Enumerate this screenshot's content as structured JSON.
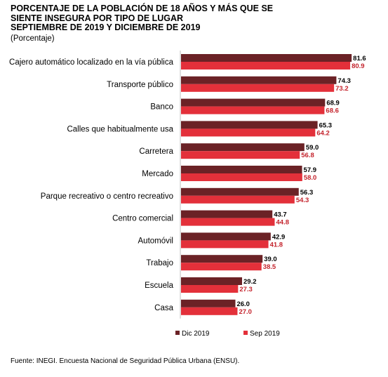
{
  "title_lines": [
    "PORCENTAJE DE LA POBLACIÓN DE 18 AÑOS Y MÁS QUE SE",
    "SIENTE INSEGURA POR TIPO DE LUGAR",
    "SEPTIEMBRE DE 2019 Y DICIEMBRE DE 2019"
  ],
  "subtitle": "(Porcentaje)",
  "source": "Fuente: INEGI. Encuesta Nacional de Seguridad Pública Urbana (ENSU).",
  "chart_data": {
    "type": "bar",
    "orientation": "horizontal",
    "title": "PORCENTAJE DE LA POBLACIÓN DE 18 AÑOS Y MÁS QUE SE SIENTE INSEGURA POR TIPO DE LUGAR SEPTIEMBRE DE 2019 Y DICIEMBRE DE 2019",
    "subtitle": "(Porcentaje)",
    "categories": [
      "Cajero automático localizado en la vía pública",
      "Transporte público",
      "Banco",
      "Calles que habitualmente usa",
      "Carretera",
      "Mercado",
      "Parque recreativo o centro recreativo",
      "Centro comercial",
      "Automóvil",
      "Trabajo",
      "Escuela",
      "Casa"
    ],
    "series": [
      {
        "name": "Dic 2019",
        "color": "#6b2226",
        "values": [
          81.6,
          74.3,
          68.9,
          65.3,
          59.0,
          57.9,
          56.3,
          43.7,
          42.9,
          39.0,
          29.2,
          26.0
        ]
      },
      {
        "name": "Sep 2019",
        "color": "#e3303a",
        "values": [
          80.9,
          73.2,
          68.6,
          64.2,
          56.8,
          58.0,
          54.3,
          44.8,
          41.8,
          38.5,
          27.3,
          27.0
        ]
      }
    ],
    "value_labels_color": [
      "#000000",
      "#c4232c"
    ],
    "xlim": [
      0,
      100
    ],
    "grid": false,
    "axis_line": true,
    "legend_position": "bottom"
  }
}
